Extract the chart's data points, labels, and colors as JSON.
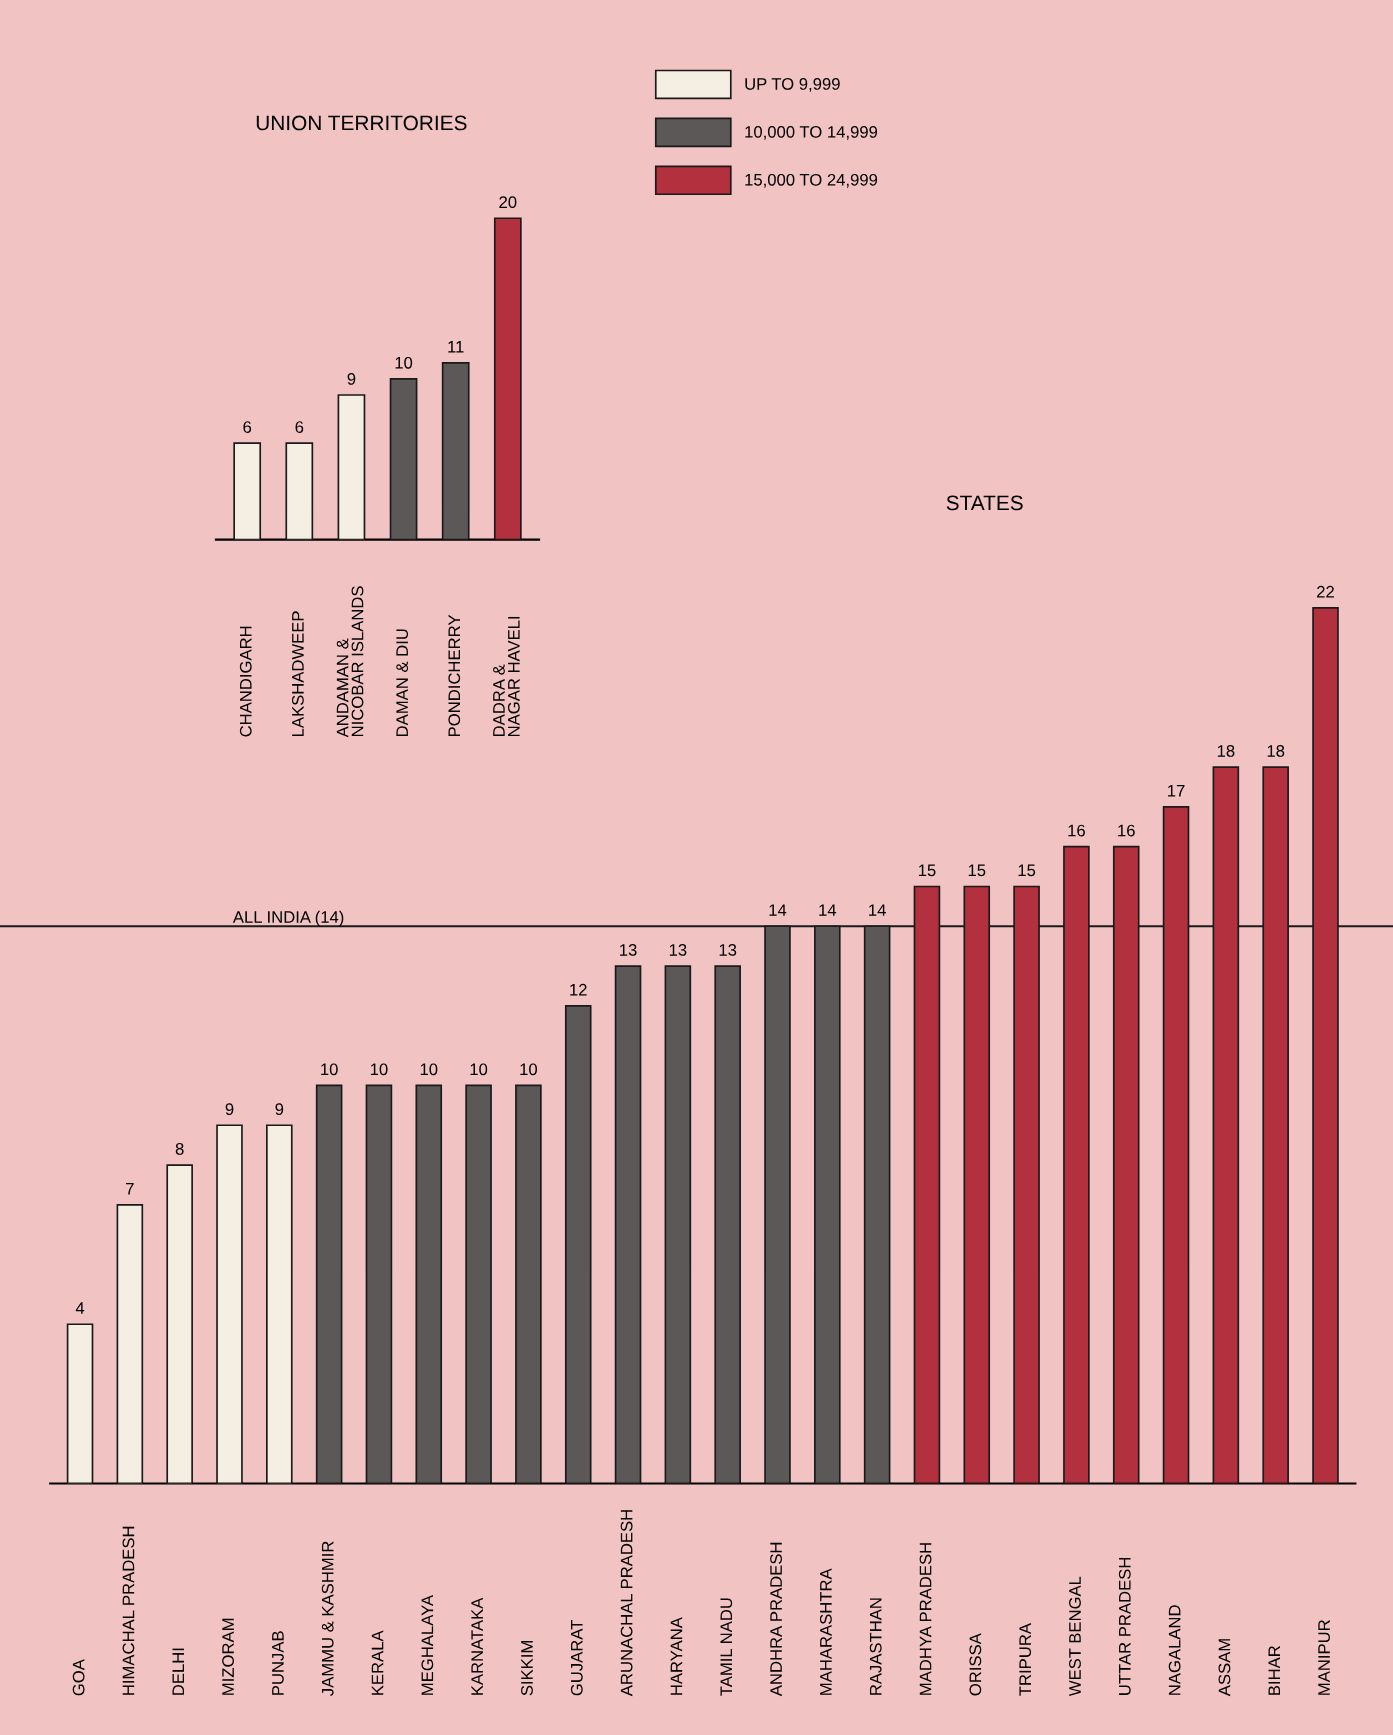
{
  "chart_data": [
    {
      "type": "bar",
      "title": "UNION TERRITORIES",
      "categories": [
        "CHANDIGARH",
        "LAKSHADWEEP",
        "ANDAMAN &\nNICOBAR ISLANDS",
        "DAMAN & DIU",
        "PONDICHERRY",
        "DADRA &\nNAGAR HAVELI"
      ],
      "series": [
        {
          "color": "#f4efe2",
          "values": [
            6,
            6,
            9,
            null,
            null,
            null
          ]
        },
        {
          "color": "#5c5858",
          "values": [
            null,
            null,
            null,
            10,
            11,
            null
          ]
        },
        {
          "color": "#b3303e",
          "values": [
            null,
            null,
            null,
            null,
            null,
            20
          ]
        }
      ],
      "data_labels": true,
      "tick_labels": "x"
    },
    {
      "type": "bar",
      "title": "STATES",
      "categories": [
        "GOA",
        "HIMACHAL PRADESH",
        "DELHI",
        "MIZORAM",
        "PUNJAB",
        "JAMMU & KASHMIR",
        "KERALA",
        "MEGHALAYA",
        "KARNATAKA",
        "SIKKIM",
        "GUJARAT",
        "ARUNACHAL PRADESH",
        "HARYANA",
        "TAMIL NADU",
        "ANDHRA PRADESH",
        "MAHARASHTRA",
        "RAJASTHAN",
        "MADHYA PRADESH",
        "ORISSA",
        "TRIPURA",
        "WEST BENGAL",
        "UTTAR PRADESH",
        "NAGALAND",
        "ASSAM",
        "BIHAR",
        "MANIPUR"
      ],
      "series": [
        {
          "name": "UP TO 9,999",
          "color": "#f4efe2",
          "values": [
            4,
            7,
            8,
            9,
            9,
            null,
            null,
            null,
            null,
            null,
            null,
            null,
            null,
            null,
            null,
            null,
            null,
            null,
            null,
            null,
            null,
            null,
            null,
            null,
            null,
            null
          ]
        },
        {
          "name": "10,000 TO 14,999",
          "color": "#5c5858",
          "values": [
            null,
            null,
            null,
            null,
            null,
            10,
            10,
            10,
            10,
            10,
            12,
            13,
            13,
            13,
            14,
            14,
            14,
            null,
            null,
            null,
            null,
            null,
            null,
            null,
            null,
            null
          ]
        },
        {
          "name": "15,000 TO 24,999",
          "color": "#b3303e",
          "values": [
            null,
            null,
            null,
            null,
            null,
            null,
            null,
            null,
            null,
            null,
            null,
            null,
            null,
            null,
            null,
            null,
            null,
            15,
            15,
            15,
            16,
            16,
            17,
            18,
            18,
            22
          ]
        }
      ],
      "ref_lines": [
        {
          "axis": "y",
          "value": 14,
          "label": "ALL INDIA (14)",
          "color": "#1a1a1a"
        }
      ],
      "data_labels": true,
      "tick_labels": "x",
      "legend": "top"
    }
  ]
}
